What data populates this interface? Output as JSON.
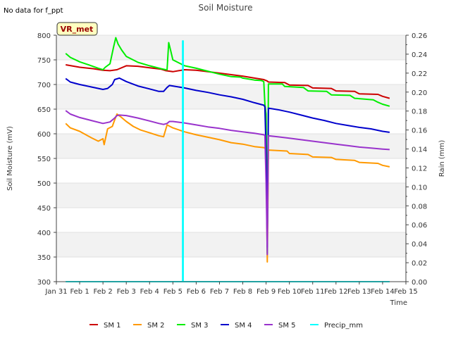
{
  "chart_data": {
    "type": "line",
    "title": "Soil Moisture",
    "no_data_note": "No data for f_ppt",
    "site_badge": "VR_met",
    "xlabel": "Time",
    "ylabel": "Soil Moisture (mV)",
    "y2label": "Rain (mm)",
    "xlim": [
      0,
      15
    ],
    "ylim": [
      300,
      800
    ],
    "y2lim": [
      0.0,
      0.26
    ],
    "x_ticks": [
      0,
      1,
      2,
      3,
      4,
      5,
      6,
      7,
      8,
      9,
      10,
      11,
      12,
      13,
      14,
      15
    ],
    "x_tick_labels": [
      "Jan 31",
      "Feb 1",
      "Feb 2",
      "Feb 3",
      "Feb 4",
      "Feb 5",
      "Feb 6",
      "Feb 7",
      "Feb 8",
      "Feb 9",
      "Feb 10",
      "Feb 11",
      "Feb 12",
      "Feb 13",
      "Feb 14",
      "Feb 15"
    ],
    "y_ticks": [
      300,
      350,
      400,
      450,
      500,
      550,
      600,
      650,
      700,
      750,
      800
    ],
    "y_tick_labels": [
      "300",
      "350",
      "400",
      "450",
      "500",
      "550",
      "600",
      "650",
      "700",
      "750",
      "800"
    ],
    "y2_ticks": [
      0.0,
      0.02,
      0.04,
      0.06,
      0.08,
      0.1,
      0.12,
      0.14,
      0.16,
      0.18,
      0.2,
      0.22,
      0.24,
      0.26
    ],
    "y2_tick_labels": [
      "0.00",
      "0.02",
      "0.04",
      "0.06",
      "0.08",
      "0.10",
      "0.12",
      "0.14",
      "0.16",
      "0.18",
      "0.20",
      "0.22",
      "0.24",
      "0.26"
    ],
    "legend_position": "bottom",
    "series": [
      {
        "name": "SM 1",
        "axis": "left",
        "color": "#cc0000",
        "x": [
          0.4,
          1.0,
          1.6,
          2.0,
          2.3,
          2.6,
          3.0,
          3.5,
          4.0,
          4.5,
          4.7,
          5.0,
          5.5,
          6.0,
          6.5,
          7.0,
          7.5,
          8.0,
          8.5,
          8.9,
          8.95,
          9.05,
          9.1,
          9.8,
          10.0,
          10.8,
          11.0,
          11.8,
          12.0,
          12.8,
          13.0,
          13.8,
          14.0,
          14.3
        ],
        "values": [
          740,
          735,
          732,
          729,
          728,
          730,
          738,
          737,
          734,
          731,
          728,
          726,
          730,
          729,
          726,
          723,
          720,
          717,
          713,
          710,
          709,
          707,
          705,
          704,
          699,
          698,
          693,
          692,
          687,
          686,
          681,
          680,
          676,
          672
        ]
      },
      {
        "name": "SM 2",
        "axis": "left",
        "color": "#ff9900",
        "x": [
          0.4,
          0.6,
          1.0,
          1.5,
          1.8,
          2.0,
          2.05,
          2.2,
          2.4,
          2.5,
          2.6,
          2.75,
          3.0,
          3.3,
          3.6,
          4.0,
          4.4,
          4.6,
          4.75,
          5.0,
          5.5,
          6.0,
          7.0,
          7.5,
          8.0,
          8.5,
          8.9,
          9.0,
          9.05,
          9.1,
          9.9,
          10.0,
          10.8,
          11.0,
          11.8,
          12.0,
          12.8,
          13.0,
          13.8,
          14.0,
          14.3
        ],
        "values": [
          621,
          612,
          605,
          592,
          585,
          590,
          578,
          610,
          615,
          628,
          640,
          635,
          625,
          615,
          608,
          602,
          596,
          594,
          618,
          612,
          604,
          598,
          588,
          582,
          579,
          574,
          572,
          570,
          340,
          567,
          565,
          560,
          558,
          553,
          552,
          548,
          546,
          542,
          540,
          536,
          533
        ]
      },
      {
        "name": "SM 3",
        "axis": "left",
        "color": "#00ee00",
        "x": [
          0.4,
          0.6,
          1.0,
          1.5,
          1.8,
          2.0,
          2.1,
          2.3,
          2.45,
          2.55,
          2.65,
          2.8,
          3.0,
          3.5,
          4.0,
          4.5,
          4.7,
          4.75,
          4.82,
          4.9,
          5.0,
          5.5,
          6.0,
          6.5,
          7.0,
          7.5,
          7.9,
          8.0,
          8.5,
          8.8,
          8.9,
          8.95,
          9.0,
          9.05,
          9.1,
          9.7,
          9.8,
          10.6,
          10.8,
          11.6,
          11.8,
          12.6,
          12.8,
          13.6,
          13.8,
          14.0,
          14.3
        ],
        "values": [
          763,
          755,
          746,
          738,
          733,
          730,
          735,
          742,
          775,
          795,
          782,
          770,
          757,
          745,
          738,
          732,
          730,
          730,
          785,
          770,
          750,
          738,
          733,
          727,
          721,
          716,
          715,
          713,
          709,
          708,
          706,
          660,
          640,
          358,
          701,
          701,
          696,
          694,
          687,
          686,
          679,
          678,
          672,
          669,
          664,
          660,
          656
        ]
      },
      {
        "name": "SM 4",
        "axis": "left",
        "color": "#0000cc",
        "x": [
          0.4,
          0.6,
          1.0,
          1.5,
          2.0,
          2.2,
          2.4,
          2.5,
          2.7,
          3.0,
          3.5,
          4.0,
          4.4,
          4.6,
          4.75,
          4.85,
          5.0,
          5.5,
          6.0,
          6.5,
          7.0,
          7.5,
          8.0,
          8.5,
          8.9,
          8.95,
          9.0,
          9.05,
          9.1,
          9.5,
          10.0,
          10.5,
          11.0,
          11.5,
          12.0,
          12.5,
          13.0,
          13.5,
          14.0,
          14.3
        ],
        "values": [
          712,
          705,
          700,
          695,
          690,
          692,
          700,
          710,
          713,
          706,
          697,
          691,
          686,
          686,
          694,
          698,
          697,
          693,
          688,
          684,
          679,
          675,
          670,
          663,
          658,
          655,
          560,
          370,
          652,
          649,
          644,
          638,
          632,
          627,
          621,
          617,
          613,
          610,
          605,
          603
        ]
      },
      {
        "name": "SM 5",
        "axis": "left",
        "color": "#9933cc",
        "x": [
          0.4,
          0.6,
          1.0,
          1.5,
          2.0,
          2.3,
          2.5,
          2.6,
          2.7,
          3.0,
          3.5,
          4.0,
          4.4,
          4.6,
          4.75,
          4.85,
          5.0,
          5.5,
          6.0,
          6.5,
          7.0,
          7.5,
          8.0,
          8.5,
          8.9,
          8.95,
          9.0,
          9.05,
          9.1,
          9.5,
          10.0,
          10.5,
          11.0,
          11.5,
          12.0,
          12.5,
          13.0,
          13.5,
          14.0,
          14.3
        ],
        "values": [
          647,
          640,
          633,
          627,
          621,
          624,
          632,
          637,
          638,
          637,
          632,
          626,
          621,
          619,
          621,
          625,
          625,
          622,
          618,
          614,
          611,
          607,
          604,
          601,
          598,
          597,
          500,
          355,
          596,
          594,
          591,
          588,
          585,
          582,
          579,
          576,
          573,
          571,
          569,
          568
        ]
      },
      {
        "name": "Precip_mm",
        "axis": "right",
        "color": "#00ffff",
        "x": [
          0.4,
          5.4,
          5.42,
          5.42,
          5.44,
          5.44,
          5.46,
          14.3
        ],
        "values": [
          0.0,
          0.0,
          0.0,
          0.254,
          0.254,
          0.0,
          0.0,
          0.0
        ]
      }
    ]
  }
}
